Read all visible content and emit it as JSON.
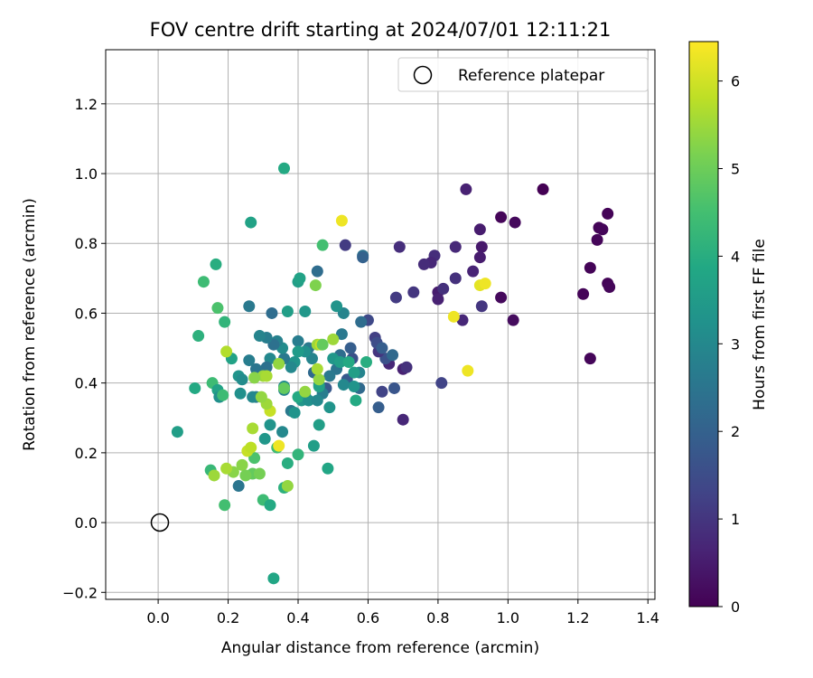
{
  "chart_data": {
    "type": "scatter",
    "title": "FOV centre drift starting at 2024/07/01 12:11:21",
    "xlabel": "Angular distance from reference (arcmin)",
    "ylabel": "Rotation from reference (arcmin)",
    "xlim": [
      -0.15,
      1.42
    ],
    "ylim": [
      -0.22,
      1.355
    ],
    "xticks": [
      0.0,
      0.2,
      0.4,
      0.6,
      0.8,
      1.0,
      1.2,
      1.4
    ],
    "xtick_labels": [
      "0.0",
      "0.2",
      "0.4",
      "0.6",
      "0.8",
      "1.0",
      "1.2",
      "1.4"
    ],
    "yticks": [
      -0.2,
      0.0,
      0.2,
      0.4,
      0.6,
      0.8,
      1.0,
      1.2
    ],
    "ytick_labels": [
      "−0.2",
      "0.0",
      "0.2",
      "0.4",
      "0.6",
      "0.8",
      "1.0",
      "1.2"
    ],
    "grid": true,
    "legend": {
      "position": "top-right",
      "entries": [
        "Reference platepar"
      ]
    },
    "reference_point": {
      "x": 0.0,
      "y": 0.0,
      "label": "Reference platepar"
    },
    "colorbar": {
      "label": "Hours from first FF file",
      "colormap": "viridis",
      "range": [
        0,
        6.45
      ],
      "ticks": [
        0,
        1,
        2,
        3,
        4,
        5,
        6
      ],
      "tick_labels": [
        "0",
        "1",
        "2",
        "3",
        "4",
        "5",
        "6"
      ]
    },
    "points": [
      [
        1.1,
        0.955,
        0.0
      ],
      [
        0.98,
        0.875,
        0.1
      ],
      [
        1.02,
        0.86,
        0.15
      ],
      [
        1.285,
        0.885,
        0.05
      ],
      [
        1.26,
        0.845,
        0.05
      ],
      [
        1.27,
        0.84,
        0.1
      ],
      [
        1.255,
        0.81,
        0.1
      ],
      [
        1.235,
        0.73,
        0.05
      ],
      [
        1.285,
        0.685,
        0.05
      ],
      [
        1.29,
        0.675,
        0.1
      ],
      [
        1.215,
        0.655,
        0.05
      ],
      [
        1.235,
        0.47,
        0.1
      ],
      [
        0.98,
        0.645,
        0.15
      ],
      [
        1.015,
        0.58,
        0.2
      ],
      [
        0.88,
        0.955,
        0.6
      ],
      [
        0.92,
        0.84,
        0.5
      ],
      [
        0.925,
        0.79,
        0.45
      ],
      [
        0.92,
        0.76,
        0.5
      ],
      [
        0.9,
        0.72,
        0.65
      ],
      [
        0.85,
        0.79,
        0.75
      ],
      [
        0.85,
        0.7,
        0.9
      ],
      [
        0.79,
        0.765,
        0.85
      ],
      [
        0.78,
        0.745,
        0.7
      ],
      [
        0.76,
        0.74,
        0.8
      ],
      [
        0.8,
        0.66,
        0.5
      ],
      [
        0.815,
        0.67,
        0.9
      ],
      [
        0.8,
        0.64,
        0.6
      ],
      [
        0.69,
        0.79,
        0.85
      ],
      [
        0.73,
        0.66,
        1.0
      ],
      [
        0.68,
        0.645,
        1.1
      ],
      [
        0.925,
        0.62,
        1.0
      ],
      [
        0.87,
        0.58,
        0.7
      ],
      [
        0.7,
        0.44,
        0.6
      ],
      [
        0.71,
        0.445,
        0.9
      ],
      [
        0.7,
        0.295,
        0.7
      ],
      [
        0.81,
        0.4,
        1.3
      ],
      [
        0.66,
        0.455,
        0.7
      ],
      [
        0.65,
        0.47,
        1.6
      ],
      [
        0.67,
        0.48,
        2.2
      ],
      [
        0.63,
        0.49,
        1.0
      ],
      [
        0.62,
        0.53,
        1.2
      ],
      [
        0.625,
        0.515,
        1.5
      ],
      [
        0.64,
        0.5,
        1.9
      ],
      [
        0.6,
        0.58,
        1.4
      ],
      [
        0.58,
        0.575,
        2.3
      ],
      [
        0.585,
        0.765,
        2.4
      ],
      [
        0.585,
        0.76,
        2.0
      ],
      [
        0.535,
        0.795,
        1.1
      ],
      [
        0.455,
        0.72,
        2.3
      ],
      [
        0.64,
        0.375,
        1.3
      ],
      [
        0.675,
        0.385,
        1.7
      ],
      [
        0.63,
        0.33,
        1.9
      ],
      [
        0.555,
        0.47,
        1.6
      ],
      [
        0.55,
        0.5,
        1.9
      ],
      [
        0.575,
        0.385,
        2.2
      ],
      [
        0.54,
        0.41,
        1.8
      ],
      [
        0.52,
        0.48,
        2.3
      ],
      [
        0.525,
        0.54,
        2.6
      ],
      [
        0.53,
        0.6,
        2.9
      ],
      [
        0.51,
        0.62,
        3.3
      ],
      [
        0.575,
        0.43,
        2.9
      ],
      [
        0.56,
        0.39,
        3.3
      ],
      [
        0.53,
        0.395,
        3.0
      ],
      [
        0.51,
        0.44,
        2.5
      ],
      [
        0.5,
        0.47,
        3.4
      ],
      [
        0.49,
        0.42,
        2.6
      ],
      [
        0.48,
        0.385,
        1.8
      ],
      [
        0.47,
        0.37,
        2.7
      ],
      [
        0.46,
        0.395,
        3.0
      ],
      [
        0.445,
        0.43,
        2.2
      ],
      [
        0.44,
        0.47,
        2.9
      ],
      [
        0.43,
        0.5,
        2.6
      ],
      [
        0.42,
        0.49,
        3.2
      ],
      [
        0.4,
        0.52,
        2.7
      ],
      [
        0.4,
        0.49,
        3.5
      ],
      [
        0.39,
        0.46,
        3.3
      ],
      [
        0.38,
        0.445,
        3.0
      ],
      [
        0.36,
        0.47,
        2.6
      ],
      [
        0.355,
        0.5,
        3.1
      ],
      [
        0.34,
        0.52,
        2.8
      ],
      [
        0.33,
        0.51,
        2.4
      ],
      [
        0.32,
        0.47,
        3.0
      ],
      [
        0.31,
        0.53,
        2.7
      ],
      [
        0.29,
        0.535,
        2.9
      ],
      [
        0.31,
        0.445,
        2.4
      ],
      [
        0.28,
        0.44,
        2.5
      ],
      [
        0.26,
        0.465,
        2.7
      ],
      [
        0.23,
        0.42,
        3.3
      ],
      [
        0.21,
        0.47,
        3.7
      ],
      [
        0.24,
        0.41,
        3.1
      ],
      [
        0.36,
        0.39,
        3.1
      ],
      [
        0.36,
        0.38,
        2.9
      ],
      [
        0.38,
        0.32,
        2.6
      ],
      [
        0.39,
        0.315,
        3.3
      ],
      [
        0.41,
        0.35,
        3.4
      ],
      [
        0.42,
        0.365,
        2.8
      ],
      [
        0.4,
        0.36,
        3.9
      ],
      [
        0.43,
        0.35,
        3.2
      ],
      [
        0.455,
        0.35,
        3.0
      ],
      [
        0.46,
        0.39,
        3.7
      ],
      [
        0.49,
        0.33,
        3.3
      ],
      [
        0.52,
        0.46,
        3.6
      ],
      [
        0.545,
        0.46,
        3.9
      ],
      [
        0.56,
        0.43,
        3.6
      ],
      [
        0.595,
        0.46,
        4.0
      ],
      [
        0.565,
        0.35,
        3.9
      ],
      [
        0.46,
        0.28,
        3.6
      ],
      [
        0.355,
        0.26,
        3.0
      ],
      [
        0.32,
        0.28,
        3.3
      ],
      [
        0.305,
        0.24,
        3.4
      ],
      [
        0.28,
        0.36,
        2.6
      ],
      [
        0.27,
        0.36,
        3.0
      ],
      [
        0.235,
        0.37,
        3.2
      ],
      [
        0.26,
        0.62,
        2.6
      ],
      [
        0.325,
        0.6,
        2.3
      ],
      [
        0.37,
        0.605,
        3.6
      ],
      [
        0.42,
        0.605,
        3.4
      ],
      [
        0.4,
        0.69,
        3.6
      ],
      [
        0.405,
        0.7,
        3.7
      ],
      [
        0.265,
        0.86,
        3.7
      ],
      [
        0.36,
        1.015,
        3.9
      ],
      [
        0.47,
        0.795,
        4.5
      ],
      [
        0.45,
        0.68,
        5.2
      ],
      [
        0.165,
        0.74,
        4.0
      ],
      [
        0.13,
        0.69,
        4.4
      ],
      [
        0.17,
        0.615,
        4.6
      ],
      [
        0.19,
        0.575,
        4.2
      ],
      [
        0.115,
        0.535,
        4.1
      ],
      [
        0.105,
        0.385,
        3.9
      ],
      [
        0.155,
        0.4,
        4.4
      ],
      [
        0.17,
        0.38,
        3.7
      ],
      [
        0.175,
        0.36,
        3.2
      ],
      [
        0.185,
        0.365,
        4.4
      ],
      [
        0.055,
        0.26,
        3.6
      ],
      [
        0.23,
        0.105,
        2.5
      ],
      [
        0.15,
        0.15,
        4.3
      ],
      [
        0.19,
        0.05,
        4.5
      ],
      [
        0.3,
        0.065,
        4.4
      ],
      [
        0.32,
        0.05,
        3.9
      ],
      [
        0.33,
        -0.16,
        3.8
      ],
      [
        0.36,
        0.1,
        4.1
      ],
      [
        0.37,
        0.105,
        5.4
      ],
      [
        0.37,
        0.17,
        4.0
      ],
      [
        0.34,
        0.215,
        4.4
      ],
      [
        0.345,
        0.22,
        6.3
      ],
      [
        0.4,
        0.195,
        4.2
      ],
      [
        0.445,
        0.22,
        3.6
      ],
      [
        0.485,
        0.155,
        3.8
      ],
      [
        0.275,
        0.185,
        4.6
      ],
      [
        0.27,
        0.14,
        4.9
      ],
      [
        0.29,
        0.14,
        5.1
      ],
      [
        0.24,
        0.165,
        5.3
      ],
      [
        0.25,
        0.135,
        5.1
      ],
      [
        0.215,
        0.145,
        5.3
      ],
      [
        0.195,
        0.155,
        5.6
      ],
      [
        0.16,
        0.135,
        5.5
      ],
      [
        0.255,
        0.205,
        5.9
      ],
      [
        0.265,
        0.215,
        5.8
      ],
      [
        0.27,
        0.27,
        5.6
      ],
      [
        0.32,
        0.32,
        5.9
      ],
      [
        0.31,
        0.34,
        5.5
      ],
      [
        0.295,
        0.36,
        5.4
      ],
      [
        0.3,
        0.42,
        5.5
      ],
      [
        0.31,
        0.42,
        5.6
      ],
      [
        0.275,
        0.415,
        5.3
      ],
      [
        0.345,
        0.455,
        5.4
      ],
      [
        0.36,
        0.385,
        4.9
      ],
      [
        0.42,
        0.375,
        5.4
      ],
      [
        0.46,
        0.41,
        5.4
      ],
      [
        0.455,
        0.44,
        5.6
      ],
      [
        0.455,
        0.51,
        5.5
      ],
      [
        0.465,
        0.51,
        5.9
      ],
      [
        0.47,
        0.51,
        4.9
      ],
      [
        0.5,
        0.525,
        5.5
      ],
      [
        0.195,
        0.49,
        5.7
      ],
      [
        0.525,
        0.865,
        6.3
      ],
      [
        0.845,
        0.59,
        6.3
      ],
      [
        0.885,
        0.435,
        6.3
      ],
      [
        0.92,
        0.68,
        6.2
      ],
      [
        0.935,
        0.685,
        6.3
      ]
    ]
  }
}
